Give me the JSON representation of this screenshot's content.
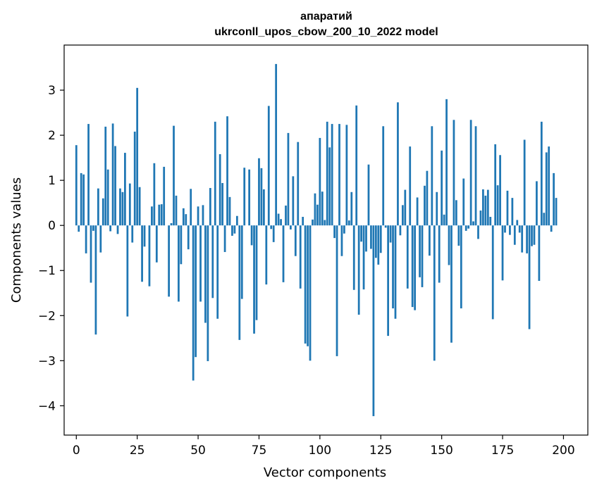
{
  "chart_data": {
    "type": "bar",
    "title": "апаратий",
    "subtitle": "ukrconll_upos_cbow_200_10_2022 model",
    "xlabel": "Vector components",
    "ylabel": "Components values",
    "xlim": [
      -5,
      210
    ],
    "ylim": [
      -4.65,
      4.0
    ],
    "xticks": [
      0,
      25,
      50,
      75,
      100,
      125,
      150,
      175,
      200
    ],
    "xtick_labels": [
      "0",
      "25",
      "50",
      "75",
      "100",
      "125",
      "150",
      "175",
      "200"
    ],
    "yticks": [
      3,
      2,
      1,
      0,
      -1,
      -2,
      -3,
      -4
    ],
    "ytick_labels": [
      "3",
      "2",
      "1",
      "0",
      "−1",
      "−2",
      "−3",
      "−4"
    ],
    "bar_color": "#1f77b4",
    "grid": false,
    "legend": "none",
    "values": [
      1.78,
      -0.14,
      1.16,
      1.13,
      -0.62,
      2.25,
      -1.27,
      -0.12,
      -2.42,
      0.82,
      -0.6,
      0.6,
      2.19,
      1.24,
      -0.13,
      2.26,
      1.76,
      -0.19,
      0.82,
      0.74,
      1.61,
      -2.02,
      0.93,
      -0.38,
      2.08,
      3.05,
      0.85,
      -1.25,
      -0.47,
      0.0,
      -1.35,
      0.42,
      1.38,
      -0.82,
      0.46,
      0.47,
      1.3,
      0.0,
      -1.58,
      0.05,
      2.21,
      0.66,
      -1.69,
      -0.86,
      0.38,
      0.25,
      -0.53,
      0.81,
      -3.44,
      -2.92,
      0.42,
      -1.69,
      0.45,
      -2.16,
      -3.01,
      0.83,
      -1.61,
      2.3,
      -2.07,
      1.58,
      0.94,
      -0.59,
      2.42,
      0.63,
      -0.23,
      -0.18,
      0.21,
      -2.54,
      -1.63,
      1.28,
      0.0,
      1.24,
      -0.44,
      -2.4,
      -2.1,
      1.49,
      1.27,
      0.8,
      -1.31,
      2.65,
      -0.08,
      -0.37,
      3.58,
      0.26,
      0.14,
      -1.26,
      0.44,
      2.05,
      -0.09,
      1.09,
      -0.68,
      1.85,
      -1.4,
      0.19,
      -2.62,
      -2.68,
      -3.0,
      0.13,
      0.71,
      0.46,
      1.94,
      0.75,
      0.12,
      2.3,
      1.73,
      2.25,
      -0.28,
      -2.9,
      2.25,
      -0.68,
      -0.18,
      2.23,
      0.11,
      0.74,
      -1.43,
      2.66,
      -1.98,
      -0.36,
      -1.42,
      -0.58,
      1.35,
      -0.52,
      -4.23,
      -0.72,
      -0.87,
      -0.61,
      2.2,
      -0.05,
      -2.45,
      -0.38,
      -1.84,
      -2.07,
      2.73,
      -0.22,
      0.45,
      0.79,
      -1.4,
      1.75,
      -1.81,
      -1.88,
      0.62,
      -1.15,
      -1.37,
      0.88,
      1.21,
      -0.67,
      2.2,
      -3.0,
      0.74,
      -1.27,
      1.66,
      0.24,
      2.8,
      -0.88,
      -2.6,
      2.34,
      0.56,
      -0.45,
      -1.84,
      1.04,
      -0.12,
      -0.07,
      2.34,
      0.09,
      2.2,
      -0.3,
      0.33,
      0.8,
      0.66,
      0.79,
      0.19,
      -2.08,
      1.8,
      0.89,
      1.56,
      -1.22,
      -0.16,
      0.77,
      -0.21,
      0.61,
      -0.43,
      0.12,
      -0.16,
      -0.6,
      1.9,
      -0.62,
      -2.3,
      -0.46,
      -0.43,
      0.98,
      -1.23,
      2.3,
      0.28,
      1.62,
      1.75,
      -0.14,
      1.16,
      0.61
    ]
  }
}
